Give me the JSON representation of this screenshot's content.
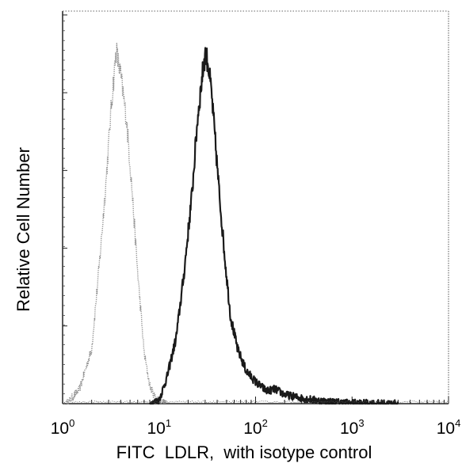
{
  "chart_data": {
    "type": "line",
    "xlabel": "FITC  LDLR,  with isotype control",
    "ylabel": "Relative Cell Number",
    "x_scale": "log",
    "xlim": [
      1,
      10000
    ],
    "x_ticks": [
      {
        "base": "10",
        "exp": "0"
      },
      {
        "base": "10",
        "exp": "1"
      },
      {
        "base": "10",
        "exp": "2"
      },
      {
        "base": "10",
        "exp": "3"
      },
      {
        "base": "10",
        "exp": "4"
      }
    ],
    "ylim": [
      0,
      1
    ],
    "y_tick_count": 5,
    "grid": false,
    "series": [
      {
        "style": "dotted",
        "color": "#8c8c8c",
        "x": [
          1.1,
          1.5,
          2.0,
          2.4,
          2.8,
          3.2,
          3.6,
          4.0,
          4.6,
          5.2,
          6.0,
          7.0,
          8.0,
          9.0,
          10.0,
          11.0,
          12.0
        ],
        "y": [
          0.0,
          0.04,
          0.15,
          0.38,
          0.6,
          0.82,
          0.97,
          0.9,
          0.78,
          0.6,
          0.36,
          0.14,
          0.05,
          0.02,
          0.01,
          0.005,
          0.0
        ]
      },
      {
        "style": "solid",
        "color": "#1a1a1a",
        "x": [
          8,
          10,
          12,
          15,
          18,
          22,
          25,
          28,
          30,
          32,
          35,
          38,
          42,
          48,
          55,
          65,
          80,
          100,
          130,
          160,
          200,
          300,
          500,
          800,
          1500,
          3000
        ],
        "y": [
          0.0,
          0.01,
          0.07,
          0.18,
          0.35,
          0.58,
          0.78,
          0.9,
          0.96,
          0.94,
          0.85,
          0.73,
          0.58,
          0.4,
          0.24,
          0.15,
          0.09,
          0.06,
          0.035,
          0.04,
          0.025,
          0.015,
          0.007,
          0.003,
          0.001,
          0.0
        ]
      }
    ]
  }
}
